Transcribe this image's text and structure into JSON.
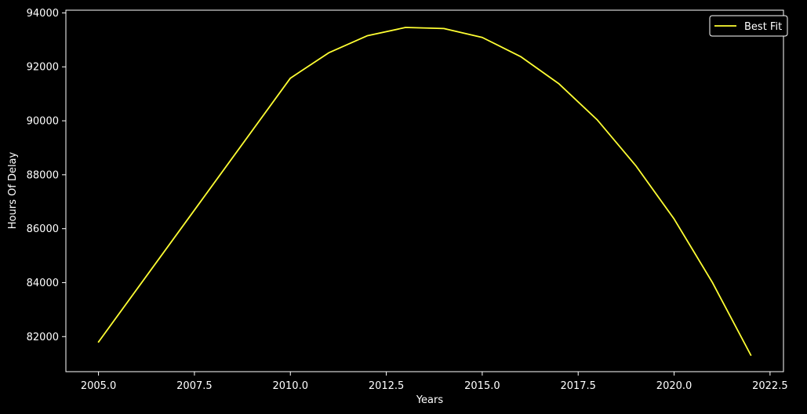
{
  "chart_data": {
    "type": "line",
    "title": "",
    "xlabel": "Years",
    "ylabel": "Hours Of Delay",
    "xlim": [
      2004.15,
      2022.85
    ],
    "ylim": [
      80700,
      94100
    ],
    "xticks": [
      2005.0,
      2007.5,
      2010.0,
      2012.5,
      2015.0,
      2017.5,
      2020.0,
      2022.5
    ],
    "xtick_labels": [
      "2005.0",
      "2007.5",
      "2010.0",
      "2012.5",
      "2015.0",
      "2017.5",
      "2020.0",
      "2022.5"
    ],
    "yticks": [
      82000,
      84000,
      86000,
      88000,
      90000,
      92000,
      94000
    ],
    "ytick_labels": [
      "82000",
      "84000",
      "86000",
      "88000",
      "90000",
      "92000",
      "94000"
    ],
    "grid": false,
    "legend_position": "top-right",
    "background": "#000000",
    "series": [
      {
        "name": "Best Fit",
        "color": "#ffff33",
        "x": [
          2005,
          2010,
          2011,
          2012,
          2013,
          2014,
          2015,
          2016,
          2017,
          2018,
          2019,
          2020,
          2021,
          2022
        ],
        "y": [
          81800,
          91580,
          92520,
          93150,
          93460,
          93420,
          93090,
          92380,
          91370,
          90030,
          88340,
          86360,
          84000,
          81310
        ]
      }
    ]
  }
}
